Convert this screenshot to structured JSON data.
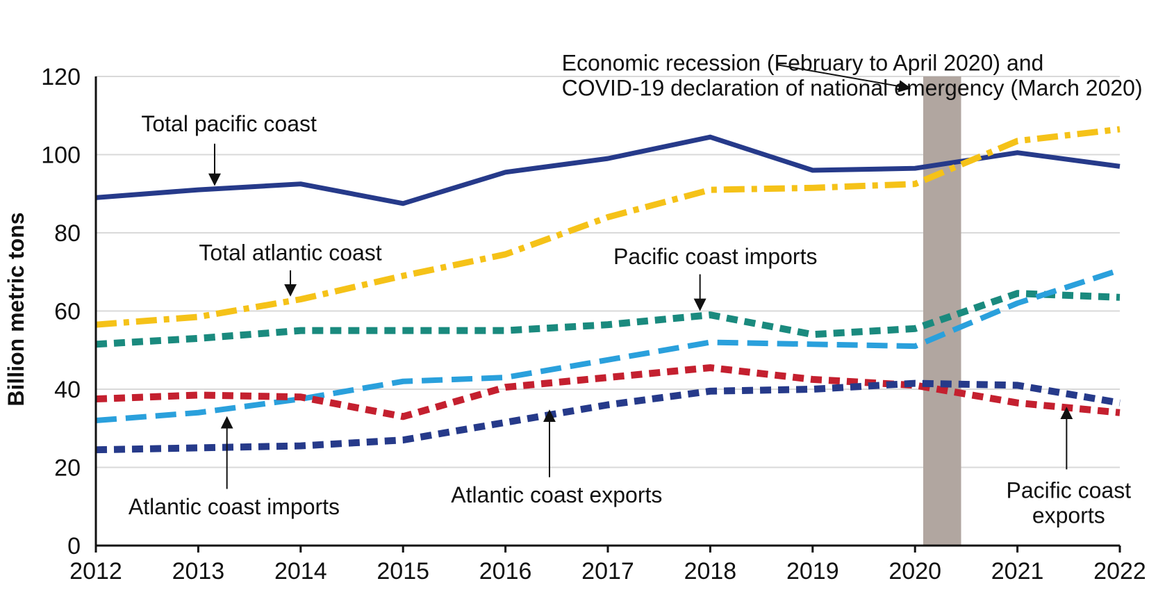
{
  "chart_data": {
    "type": "line",
    "title": "",
    "xlabel": "",
    "ylabel": "Billion metric tons",
    "x": [
      "2012",
      "2013",
      "2014",
      "2015",
      "2016",
      "2017",
      "2018",
      "2019",
      "2020",
      "2021",
      "2022"
    ],
    "ylim": [
      0,
      120
    ],
    "yticks": [
      "0",
      "20",
      "40",
      "60",
      "80",
      "100",
      "120"
    ],
    "grid": true,
    "legend": "none (series labeled directly on chart)",
    "series": [
      {
        "name": "Total pacific coast",
        "values": [
          89,
          91,
          92.5,
          87.5,
          95.5,
          99,
          104.5,
          96,
          96.5,
          100.5,
          97
        ],
        "color": "#263a8a",
        "style": "solid"
      },
      {
        "name": "Total atlantic coast",
        "values": [
          56.5,
          58.5,
          63,
          69,
          74.5,
          84,
          91,
          91.5,
          92.5,
          103.5,
          106.5
        ],
        "color": "#f5c218",
        "style": "dash-dot"
      },
      {
        "name": "Pacific coast imports",
        "values": [
          51.5,
          53,
          55,
          55,
          55,
          56.5,
          59,
          54,
          55.5,
          64.5,
          63.5
        ],
        "color": "#1a8a7e",
        "style": "short-dash"
      },
      {
        "name": "Atlantic coast imports",
        "values": [
          32,
          34,
          37.5,
          42,
          43,
          47.5,
          52,
          51.5,
          51,
          62,
          70.5
        ],
        "color": "#2aa0dc",
        "style": "long-dash"
      },
      {
        "name": "Pacific coast exports",
        "values": [
          37.5,
          38.5,
          38,
          33,
          40.5,
          43,
          45.5,
          42.5,
          41,
          36.5,
          34
        ],
        "color": "#c4202f",
        "style": "short-dash"
      },
      {
        "name": "Atlantic coast exports",
        "values": [
          24.5,
          25,
          25.5,
          27,
          31.5,
          36,
          39.5,
          40,
          41.5,
          41,
          36.5
        ],
        "color": "#263a8a",
        "style": "short-dash"
      }
    ],
    "shaded_period": {
      "x_start": 2020.08,
      "x_end": 2020.45,
      "color": "#b1a6a0"
    },
    "annotations": [
      {
        "id": "recession",
        "lines": [
          "Economic recession (February to April 2020) and",
          "COVID-19 declaration of national emergency (March 2020)"
        ]
      },
      {
        "id": "total-pacific",
        "lines": [
          "Total pacific coast"
        ]
      },
      {
        "id": "total-atlantic",
        "lines": [
          "Total atlantic coast"
        ]
      },
      {
        "id": "pacific-imports",
        "lines": [
          "Pacific coast imports"
        ]
      },
      {
        "id": "atlantic-imports",
        "lines": [
          "Atlantic coast imports"
        ]
      },
      {
        "id": "atlantic-exports",
        "lines": [
          "Atlantic coast exports"
        ]
      },
      {
        "id": "pacific-exports",
        "lines": [
          "Pacific coast",
          "exports"
        ]
      }
    ]
  }
}
